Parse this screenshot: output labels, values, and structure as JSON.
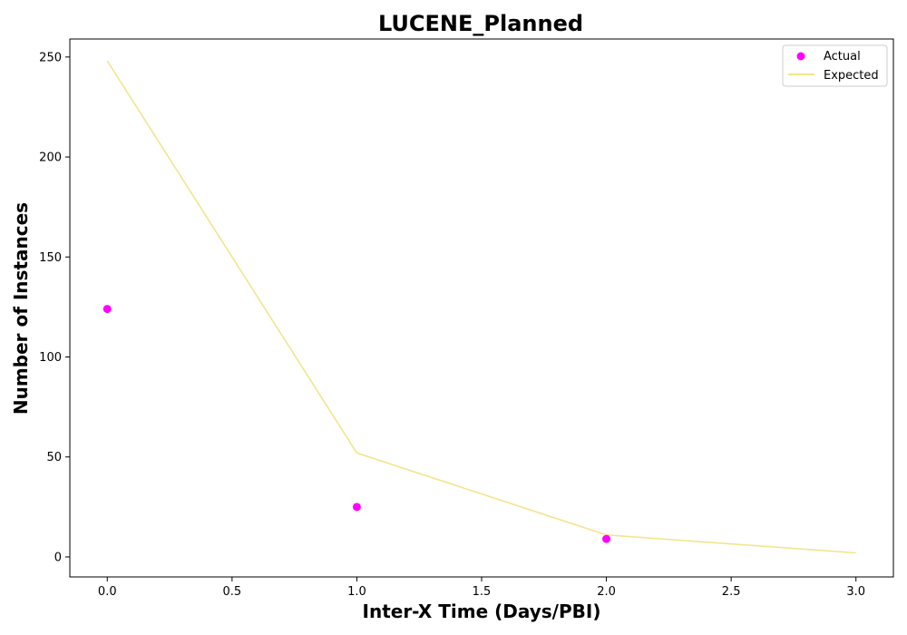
{
  "chart_data": {
    "type": "scatter",
    "title": "LUCENE_Planned",
    "xlabel": "Inter-X Time (Days/PBI)",
    "ylabel": "Number of Instances",
    "xlim": [
      -0.15,
      3.15
    ],
    "ylim": [
      -10,
      259
    ],
    "xticks": [
      0.0,
      0.5,
      1.0,
      1.5,
      2.0,
      2.5,
      3.0
    ],
    "xtick_labels": [
      "0.0",
      "0.5",
      "1.0",
      "1.5",
      "2.0",
      "2.5",
      "3.0"
    ],
    "yticks": [
      0,
      50,
      100,
      150,
      200,
      250
    ],
    "ytick_labels": [
      "0",
      "50",
      "100",
      "150",
      "200",
      "250"
    ],
    "grid": false,
    "legend_position": "top-right",
    "series": [
      {
        "name": "Actual",
        "kind": "scatter",
        "color": "#ff00ff",
        "x": [
          0,
          1,
          2
        ],
        "y": [
          124,
          25,
          9
        ]
      },
      {
        "name": "Expected",
        "kind": "line",
        "color": "#f0e68c",
        "x": [
          0,
          1,
          2,
          3
        ],
        "y": [
          248,
          52,
          11,
          2
        ]
      }
    ]
  }
}
